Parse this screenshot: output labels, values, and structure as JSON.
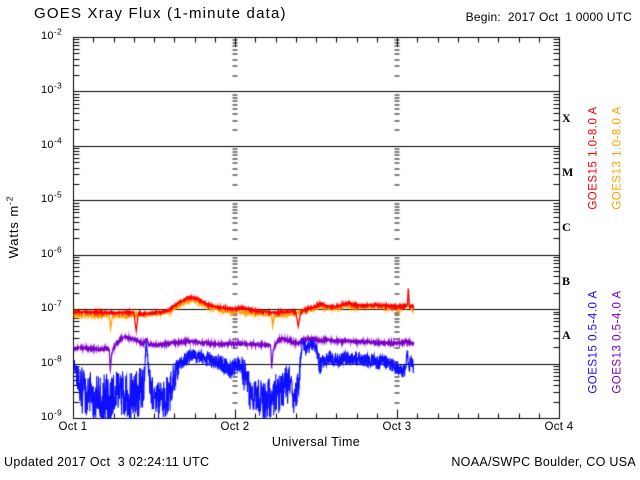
{
  "header": {
    "title": "GOES Xray Flux (1-minute data)",
    "begin_label": "Begin:  2017 Oct  1 0000 UTC"
  },
  "footer": {
    "updated": "Updated 2017 Oct  3 02:24:11 UTC",
    "credit": "NOAA/SWPC Boulder, CO USA"
  },
  "colors": {
    "background": "#ffffff",
    "axis": "#000000",
    "goes15_long": "#fd0000",
    "goes13_long": "#ffa400",
    "goes15_short": "#0f0fff",
    "goes13_short": "#7d00c8"
  },
  "chart_data": {
    "type": "line",
    "title": "GOES Xray Flux (1-minute data)",
    "xlabel": "Universal Time",
    "ylabel": "Watts m^-2",
    "x_axis": {
      "tick_labels": [
        "Oct 1",
        "Oct 2",
        "Oct 3",
        "Oct 4"
      ],
      "span_days": 3,
      "minor_tick_hours": 3,
      "dashed_gridline_days": [
        1,
        2
      ]
    },
    "y_axis": {
      "scale": "log10",
      "range_exponents": [
        -9,
        -2
      ],
      "tick_exponents": [
        -2,
        -3,
        -4,
        -5,
        -6,
        -7,
        -8,
        -9
      ],
      "decade_gridline_exponents": [
        -3,
        -4,
        -5,
        -6,
        -7,
        -8
      ]
    },
    "flux_classes": [
      {
        "label": "X",
        "log10_center": -3.5
      },
      {
        "label": "M",
        "log10_center": -4.5
      },
      {
        "label": "C",
        "log10_center": -5.5
      },
      {
        "label": "B",
        "log10_center": -6.5
      },
      {
        "label": "A",
        "log10_center": -7.5
      }
    ],
    "data_end_hours": 50.4,
    "series": [
      {
        "name": "GOES15 1.0-8.0 A",
        "color": "#fd0000",
        "noise_log10": 0.018,
        "log10_anchors": [
          [
            0,
            -7.04
          ],
          [
            3,
            -7.05
          ],
          [
            6,
            -7.06
          ],
          [
            8.9,
            -7.05
          ],
          [
            9.3,
            -7.38
          ],
          [
            9.6,
            -7.08
          ],
          [
            11,
            -7.07
          ],
          [
            13,
            -7.05
          ],
          [
            14.2,
            -7.0
          ],
          [
            15.5,
            -6.88
          ],
          [
            16.8,
            -6.79
          ],
          [
            17.6,
            -6.77
          ],
          [
            18.6,
            -6.82
          ],
          [
            19.8,
            -6.9
          ],
          [
            21,
            -6.95
          ],
          [
            22.5,
            -6.97
          ],
          [
            24,
            -6.99
          ],
          [
            25,
            -6.96
          ],
          [
            26.5,
            -7.01
          ],
          [
            28,
            -7.04
          ],
          [
            30,
            -7.06
          ],
          [
            31.5,
            -7.04
          ],
          [
            32.9,
            -7.03
          ],
          [
            33.3,
            -7.3
          ],
          [
            33.7,
            -7.04
          ],
          [
            34.5,
            -7.0
          ],
          [
            35.5,
            -6.96
          ],
          [
            36.6,
            -6.89
          ],
          [
            37.6,
            -6.94
          ],
          [
            38.6,
            -6.95
          ],
          [
            39.8,
            -6.91
          ],
          [
            40.8,
            -6.88
          ],
          [
            42,
            -6.93
          ],
          [
            43.5,
            -6.92
          ],
          [
            45,
            -6.92
          ],
          [
            46.5,
            -6.93
          ],
          [
            48,
            -6.95
          ],
          [
            49.1,
            -6.93
          ],
          [
            49.45,
            -6.92
          ],
          [
            49.6,
            -6.61
          ],
          [
            49.75,
            -6.93
          ],
          [
            50.1,
            -6.93
          ],
          [
            50.4,
            -6.96
          ]
        ]
      },
      {
        "name": "GOES13 1.0-8.0 A",
        "color": "#ffa400",
        "noise_log10": 0.022,
        "log10_anchors": [
          [
            0,
            -7.11
          ],
          [
            2,
            -7.1
          ],
          [
            4,
            -7.11
          ],
          [
            5.3,
            -7.1
          ],
          [
            5.5,
            -7.36
          ],
          [
            5.75,
            -7.12
          ],
          [
            7,
            -7.11
          ],
          [
            9,
            -7.1
          ],
          [
            11,
            -7.09
          ],
          [
            13,
            -7.07
          ],
          [
            14.2,
            -7.03
          ],
          [
            15.5,
            -6.93
          ],
          [
            16.8,
            -6.84
          ],
          [
            17.7,
            -6.82
          ],
          [
            18.7,
            -6.87
          ],
          [
            20,
            -6.95
          ],
          [
            21.5,
            -7.0
          ],
          [
            23,
            -7.03
          ],
          [
            24.5,
            -7.04
          ],
          [
            26,
            -7.06
          ],
          [
            27.5,
            -7.08
          ],
          [
            29.3,
            -7.08
          ],
          [
            29.5,
            -7.29
          ],
          [
            29.75,
            -7.1
          ],
          [
            31,
            -7.1
          ],
          [
            32.5,
            -7.08
          ],
          [
            34,
            -7.03
          ],
          [
            35.5,
            -6.99
          ],
          [
            36.6,
            -6.93
          ],
          [
            37.6,
            -6.97
          ],
          [
            39,
            -6.97
          ],
          [
            40.5,
            -6.92
          ],
          [
            42,
            -6.96
          ],
          [
            43.5,
            -6.95
          ],
          [
            45,
            -6.95
          ],
          [
            46.5,
            -6.96
          ],
          [
            48,
            -6.98
          ],
          [
            49.2,
            -6.95
          ],
          [
            49.6,
            -6.88
          ],
          [
            50,
            -6.97
          ],
          [
            50.4,
            -7.05
          ]
        ]
      },
      {
        "name": "GOES15 0.5-4.0 A",
        "color": "#0f0fff",
        "noise_log10": [
          [
            0,
            0.07
          ],
          [
            0.6,
            0.25
          ],
          [
            1.3,
            0.45
          ],
          [
            10.3,
            0.45
          ],
          [
            10.6,
            0.1
          ],
          [
            11.0,
            0.1
          ],
          [
            11.4,
            0.35
          ],
          [
            14.4,
            0.4
          ],
          [
            15.2,
            0.22
          ],
          [
            16,
            0.13
          ],
          [
            19,
            0.13
          ],
          [
            21,
            0.15
          ],
          [
            23,
            0.18
          ],
          [
            24.3,
            0.14
          ],
          [
            25.5,
            0.35
          ],
          [
            31.8,
            0.42
          ],
          [
            32.4,
            0.3
          ],
          [
            33.4,
            0.3
          ],
          [
            33.8,
            0.12
          ],
          [
            35.8,
            0.12
          ],
          [
            36.4,
            0.2
          ],
          [
            37.2,
            0.13
          ],
          [
            48,
            0.13
          ],
          [
            48.8,
            0.16
          ],
          [
            49.3,
            0.1
          ],
          [
            50.4,
            0.13
          ]
        ],
        "log10_anchors": [
          [
            0,
            -7.95
          ],
          [
            0.6,
            -8.25
          ],
          [
            1.3,
            -8.5
          ],
          [
            2.5,
            -8.6
          ],
          [
            4,
            -8.65
          ],
          [
            5.5,
            -8.6
          ],
          [
            7,
            -8.55
          ],
          [
            8.5,
            -8.6
          ],
          [
            9.5,
            -8.55
          ],
          [
            10.4,
            -8.45
          ],
          [
            10.75,
            -7.62
          ],
          [
            11.05,
            -7.95
          ],
          [
            11.5,
            -8.55
          ],
          [
            12.5,
            -8.7
          ],
          [
            13.5,
            -8.65
          ],
          [
            14.4,
            -8.5
          ],
          [
            15.2,
            -8.15
          ],
          [
            16,
            -7.97
          ],
          [
            17,
            -7.87
          ],
          [
            17.8,
            -7.82
          ],
          [
            18.6,
            -7.87
          ],
          [
            19.5,
            -7.9
          ],
          [
            20.5,
            -7.93
          ],
          [
            21.5,
            -7.95
          ],
          [
            22.5,
            -8.02
          ],
          [
            23.2,
            -8.12
          ],
          [
            24,
            -8.0
          ],
          [
            25,
            -8.08
          ],
          [
            25.8,
            -8.45
          ],
          [
            27,
            -8.6
          ],
          [
            28.3,
            -8.68
          ],
          [
            29.5,
            -8.6
          ],
          [
            30.5,
            -8.55
          ],
          [
            31.3,
            -8.45
          ],
          [
            32,
            -8.3
          ],
          [
            32.6,
            -8.75
          ],
          [
            33.3,
            -8.35
          ],
          [
            33.9,
            -7.62
          ],
          [
            34.6,
            -7.72
          ],
          [
            35.3,
            -7.62
          ],
          [
            36,
            -7.75
          ],
          [
            36.6,
            -8.05
          ],
          [
            37.2,
            -7.92
          ],
          [
            38,
            -7.88
          ],
          [
            39,
            -7.93
          ],
          [
            40,
            -7.9
          ],
          [
            41,
            -7.92
          ],
          [
            42,
            -7.9
          ],
          [
            43,
            -7.94
          ],
          [
            44,
            -7.93
          ],
          [
            45,
            -7.97
          ],
          [
            46,
            -7.96
          ],
          [
            47,
            -8.0
          ],
          [
            48,
            -8.05
          ],
          [
            48.7,
            -8.18
          ],
          [
            49.2,
            -8.05
          ],
          [
            49.45,
            -7.78
          ],
          [
            49.7,
            -8.05
          ],
          [
            50.05,
            -8.0
          ],
          [
            50.4,
            -8.05
          ]
        ]
      },
      {
        "name": "GOES13 0.5-4.0 A",
        "color": "#7d00c8",
        "noise_log10": 0.03,
        "log10_anchors": [
          [
            0,
            -7.72
          ],
          [
            1.5,
            -7.71
          ],
          [
            3,
            -7.72
          ],
          [
            4.5,
            -7.72
          ],
          [
            5.3,
            -7.73
          ],
          [
            5.45,
            -8.12
          ],
          [
            5.7,
            -7.78
          ],
          [
            6.3,
            -7.62
          ],
          [
            7.2,
            -7.53
          ],
          [
            8,
            -7.5
          ],
          [
            8.7,
            -7.53
          ],
          [
            9.5,
            -7.58
          ],
          [
            10.3,
            -7.62
          ],
          [
            10.8,
            -7.55
          ],
          [
            11.2,
            -7.63
          ],
          [
            12,
            -7.65
          ],
          [
            13,
            -7.64
          ],
          [
            14,
            -7.62
          ],
          [
            15,
            -7.61
          ],
          [
            16,
            -7.59
          ],
          [
            17,
            -7.58
          ],
          [
            18,
            -7.59
          ],
          [
            19,
            -7.61
          ],
          [
            20,
            -7.62
          ],
          [
            21.5,
            -7.63
          ],
          [
            23,
            -7.63
          ],
          [
            24.5,
            -7.63
          ],
          [
            26,
            -7.64
          ],
          [
            27.5,
            -7.64
          ],
          [
            29.2,
            -7.65
          ],
          [
            29.35,
            -8.08
          ],
          [
            29.6,
            -7.72
          ],
          [
            30.2,
            -7.58
          ],
          [
            30.9,
            -7.52
          ],
          [
            31.6,
            -7.56
          ],
          [
            32.5,
            -7.6
          ],
          [
            33.3,
            -7.62
          ],
          [
            34.1,
            -7.54
          ],
          [
            34.8,
            -7.55
          ],
          [
            35.6,
            -7.54
          ],
          [
            36.5,
            -7.57
          ],
          [
            37.5,
            -7.55
          ],
          [
            38.5,
            -7.57
          ],
          [
            40,
            -7.58
          ],
          [
            41.5,
            -7.59
          ],
          [
            43,
            -7.59
          ],
          [
            44.5,
            -7.6
          ],
          [
            46,
            -7.61
          ],
          [
            47.5,
            -7.62
          ],
          [
            48.6,
            -7.62
          ],
          [
            49.3,
            -7.57
          ],
          [
            49.8,
            -7.61
          ],
          [
            50.4,
            -7.62
          ]
        ]
      }
    ]
  }
}
